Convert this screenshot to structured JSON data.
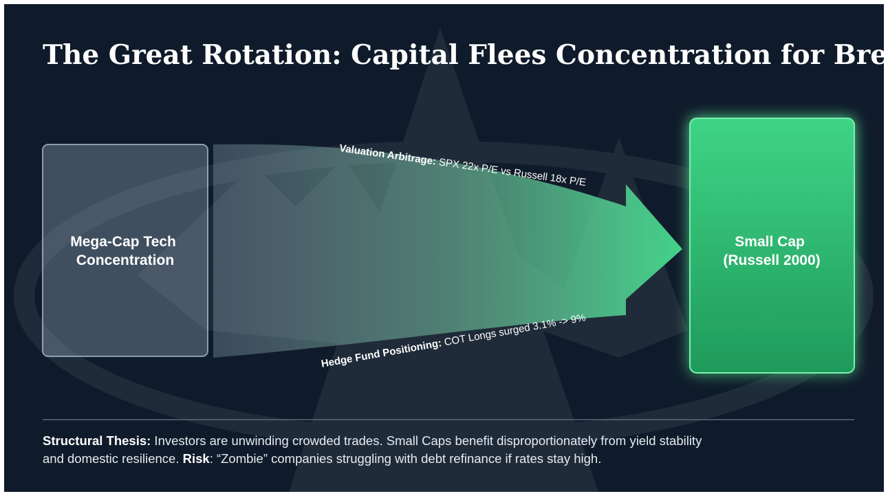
{
  "header": {
    "title": "The Great Rotation: Capital Flees Concentration for Breadth"
  },
  "nodes": [
    {
      "lines": [
        "Mega-Cap Tech",
        "Concentration"
      ]
    },
    {
      "lines": [
        "Small Cap",
        "(Russell 2000)"
      ]
    }
  ],
  "flow_labels": [
    {
      "label": "Valuation Arbitrage:",
      "text": " SPX 22x P/E vs Russell 18x P/E"
    },
    {
      "label": "Hedge Fund Positioning:",
      "text": " COT Longs surged 3.1% -> 9%"
    }
  ],
  "footer": {
    "thesis_label": "Structural Thesis:",
    "thesis_text_1": " Investors are unwinding crowded trades. Small Caps benefit disproportionately from yield stability",
    "thesis_text_2": "and domestic resilience. ",
    "risk_label": "Risk",
    "risk_text": ": “Zombie” companies struggling with debt refinance if rates stay high."
  }
}
